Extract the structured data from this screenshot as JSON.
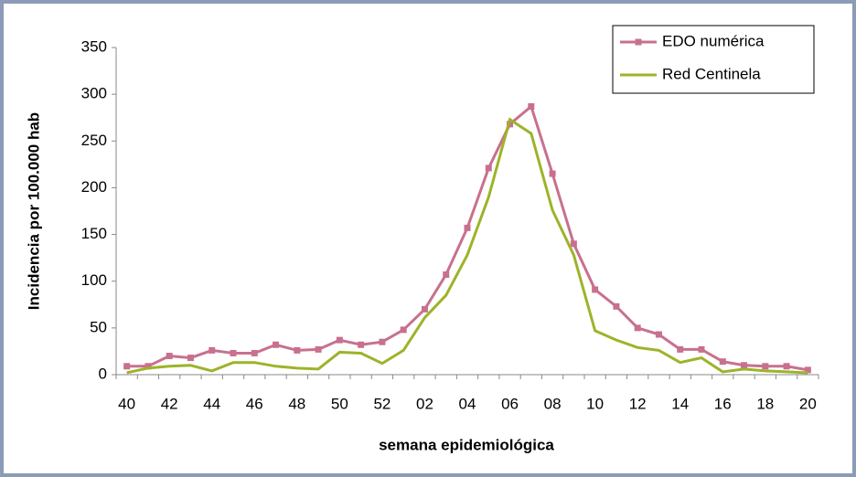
{
  "chart_data": {
    "type": "line",
    "categories": [
      "40",
      null,
      "42",
      null,
      "44",
      null,
      "46",
      null,
      "48",
      null,
      "50",
      null,
      "52",
      null,
      "02",
      null,
      "04",
      null,
      "06",
      null,
      "08",
      null,
      "10",
      null,
      "12",
      null,
      "14",
      null,
      "16",
      null,
      "18",
      null,
      "20"
    ],
    "series": [
      {
        "name": "EDO numérica",
        "color": "#c8708f",
        "marker": "square",
        "values": [
          9,
          9,
          20,
          18,
          26,
          23,
          23,
          32,
          26,
          27,
          37,
          32,
          35,
          48,
          70,
          107,
          157,
          221,
          268,
          287,
          215,
          140,
          91,
          73,
          50,
          43,
          27,
          27,
          14,
          10,
          9,
          9,
          5
        ]
      },
      {
        "name": "Red Centinela",
        "color": "#9db32a",
        "values": [
          2,
          7,
          9,
          10,
          4,
          13,
          13,
          9,
          7,
          6,
          24,
          23,
          12,
          26,
          61,
          85,
          128,
          190,
          273,
          258,
          176,
          128,
          47,
          37,
          29,
          26,
          13,
          18,
          3,
          6,
          4,
          3,
          2
        ]
      }
    ],
    "x_label": "semana epidemiológica",
    "y_label": "Incidencia por 100.000 hab",
    "ylim": [
      0,
      350
    ],
    "yticks": [
      0,
      50,
      100,
      150,
      200,
      250,
      300,
      350
    ],
    "grid": false,
    "legend": "upper right"
  }
}
